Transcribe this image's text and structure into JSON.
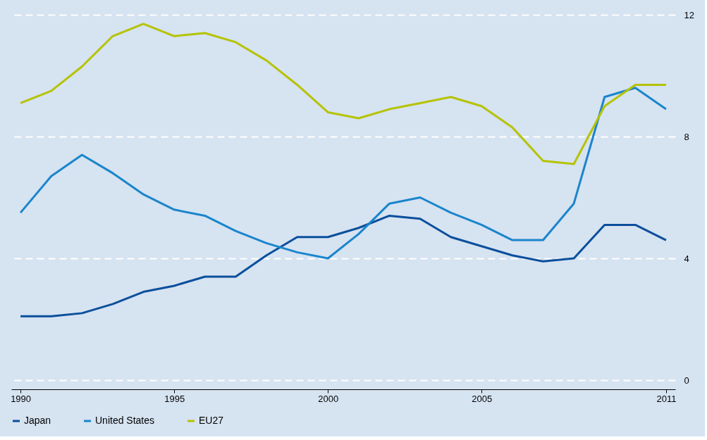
{
  "chart_data": {
    "type": "line",
    "x": [
      1990,
      1991,
      1992,
      1993,
      1994,
      1995,
      1996,
      1997,
      1998,
      1999,
      2000,
      2001,
      2002,
      2003,
      2004,
      2005,
      2006,
      2007,
      2008,
      2009,
      2010,
      2011
    ],
    "series": [
      {
        "name": "Japan",
        "color": "#0a4f9c",
        "values": [
          2.1,
          2.1,
          2.2,
          2.5,
          2.9,
          3.1,
          3.4,
          3.4,
          4.1,
          4.7,
          4.7,
          5.0,
          5.4,
          5.3,
          4.7,
          4.4,
          4.1,
          3.9,
          4.0,
          5.1,
          5.1,
          4.6
        ]
      },
      {
        "name": "United States",
        "color": "#1a85cc",
        "values": [
          5.5,
          6.7,
          7.4,
          6.8,
          6.1,
          5.6,
          5.4,
          4.9,
          4.5,
          4.2,
          4.0,
          4.8,
          5.8,
          6.0,
          5.5,
          5.1,
          4.6,
          4.6,
          5.8,
          9.3,
          9.6,
          8.9
        ]
      },
      {
        "name": "EU27",
        "color": "#b5c300",
        "values": [
          9.1,
          9.5,
          10.3,
          11.3,
          11.7,
          11.3,
          11.4,
          11.1,
          10.5,
          9.7,
          8.8,
          8.6,
          8.9,
          9.1,
          9.3,
          9.0,
          8.3,
          7.2,
          7.1,
          9.0,
          9.7,
          9.7
        ]
      }
    ],
    "xlim": [
      1989.7,
      2011.3
    ],
    "xticks": [
      1990,
      1995,
      2000,
      2005,
      2011
    ],
    "ylim": [
      -0.3,
      12
    ],
    "yticks": [
      0,
      4,
      8,
      12
    ],
    "grid": "y",
    "legend": "bottom",
    "line_style": "solid",
    "marker": "none"
  }
}
